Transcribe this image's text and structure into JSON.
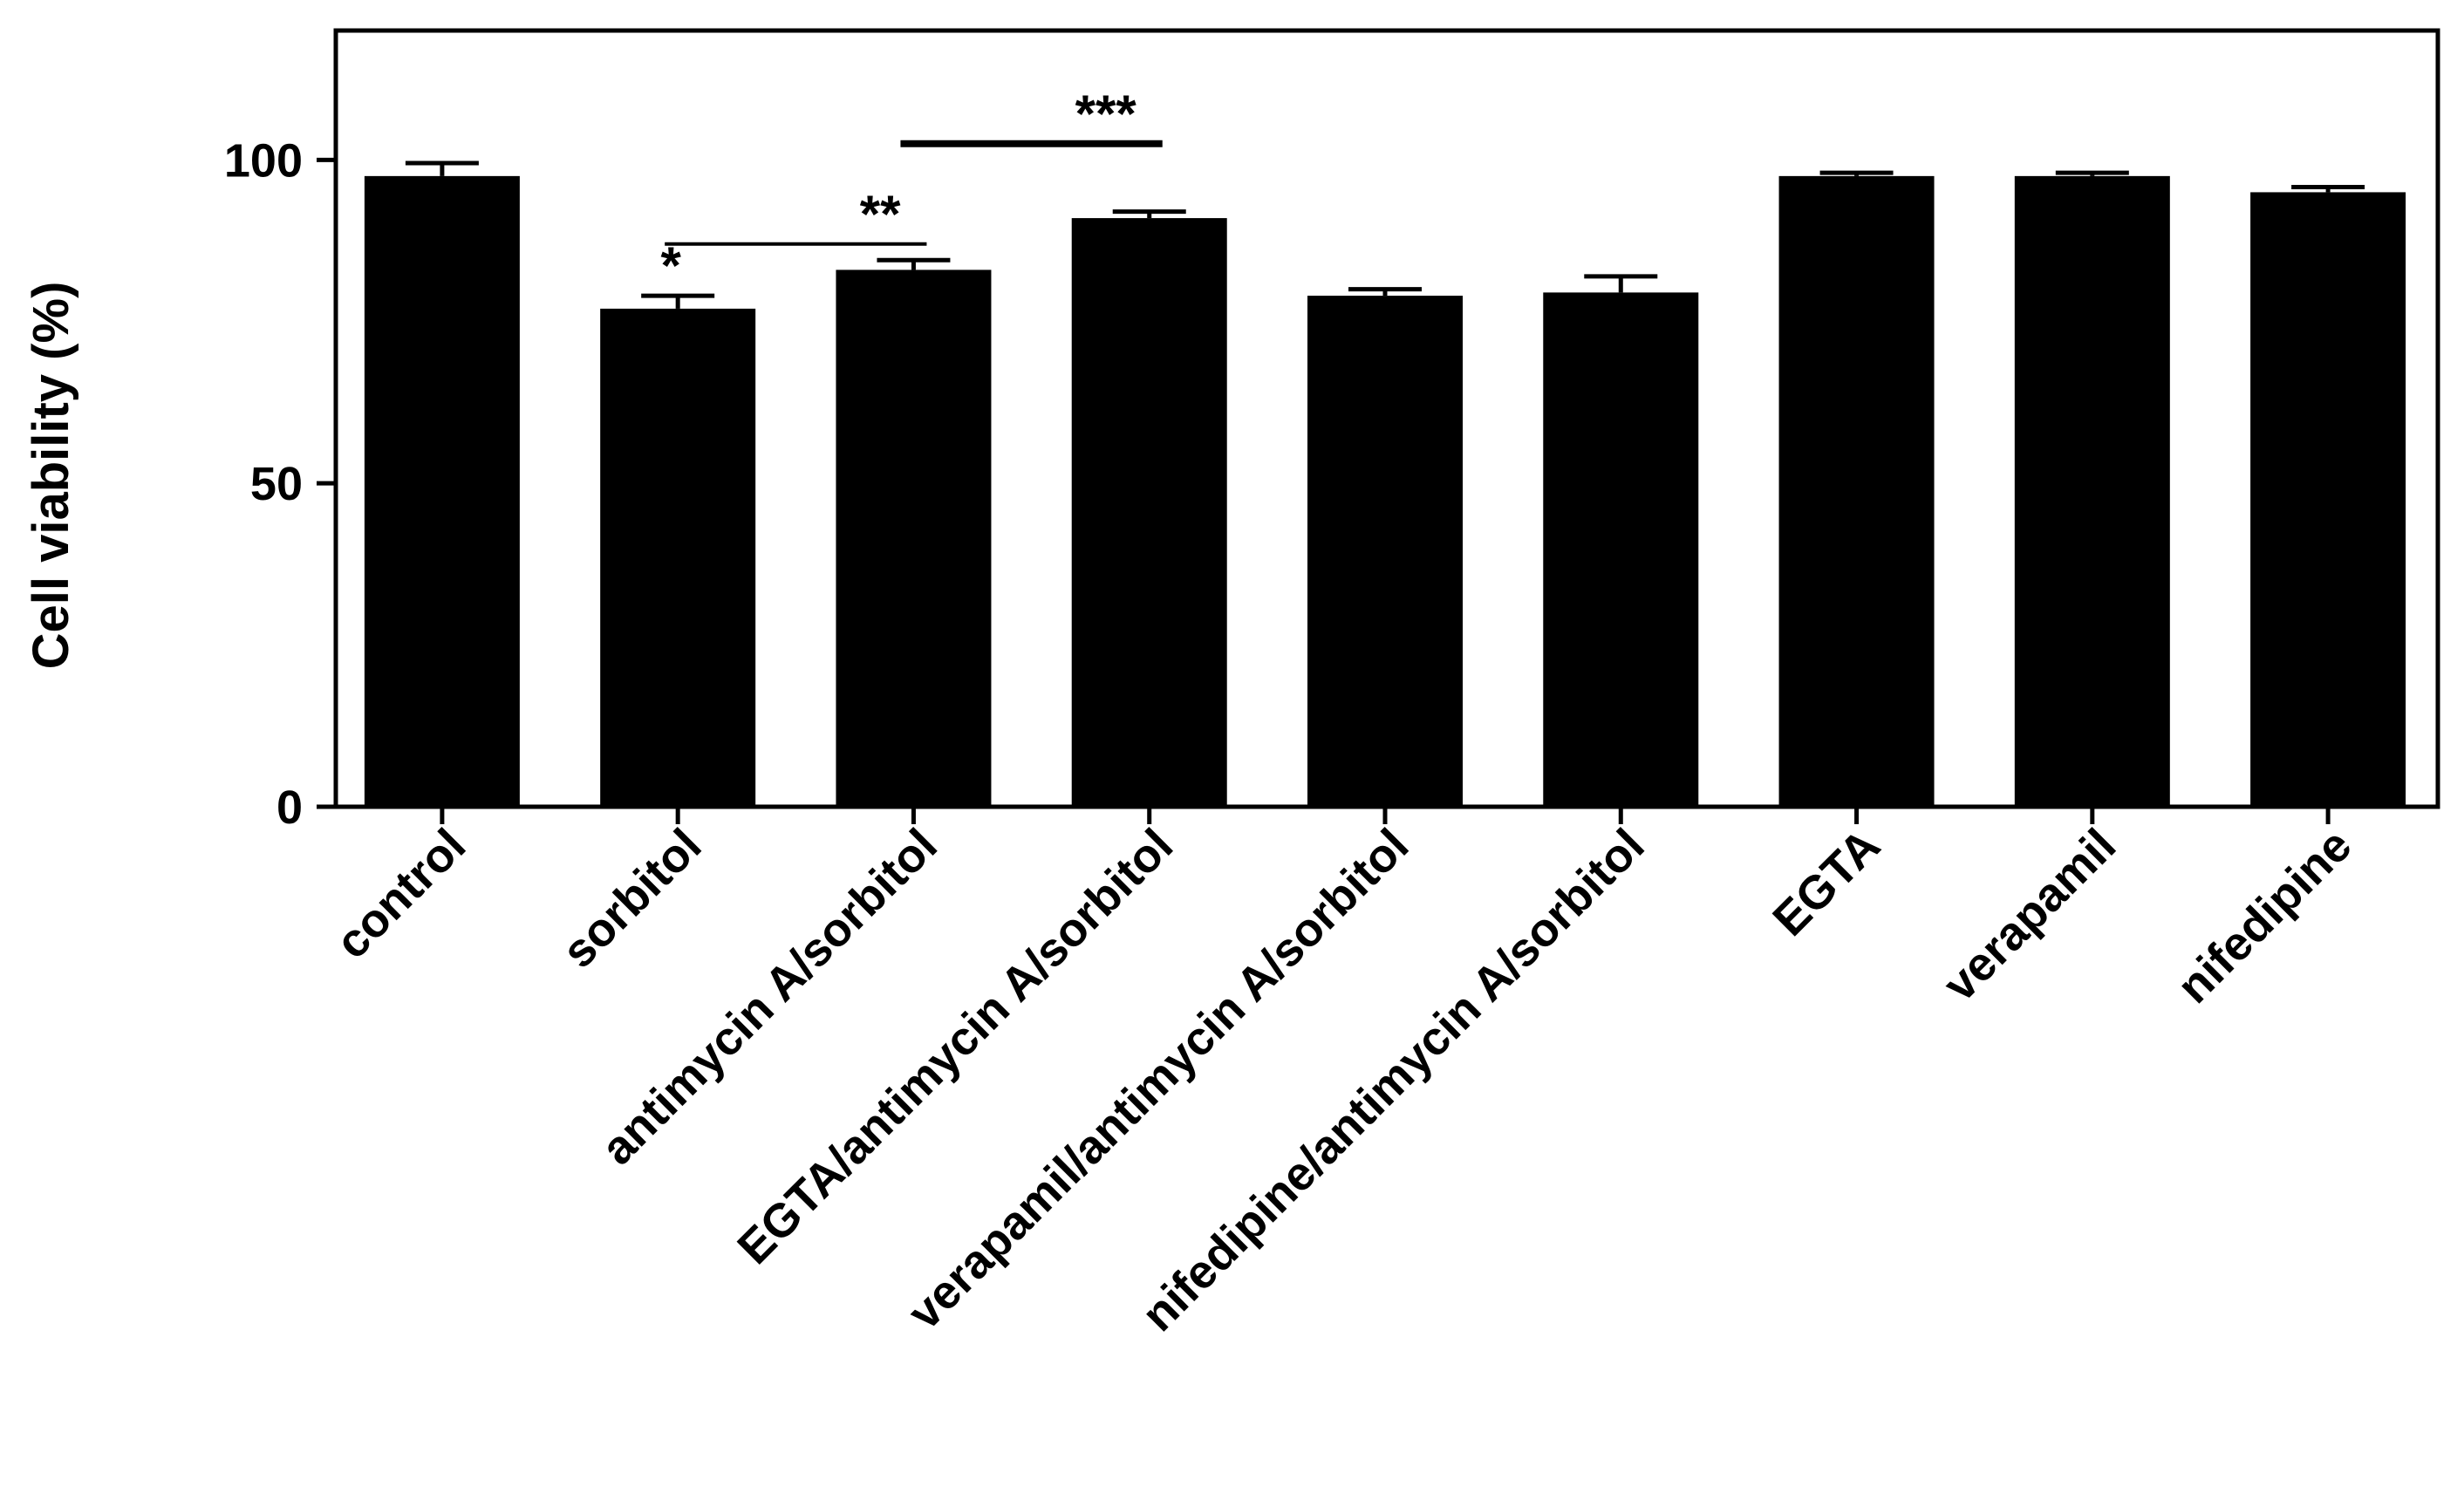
{
  "chart_data": {
    "type": "bar",
    "title": "",
    "xlabel": "",
    "ylabel": "Cell viability (%)",
    "ylim": [
      0,
      120
    ],
    "yticks": [
      0,
      50,
      100
    ],
    "grid": false,
    "legend": "none",
    "bar_color": "#000000",
    "categories": [
      "control",
      "sorbitol",
      "antimycin A/sorbitol",
      "EGTA/antimycin A/sorbitol",
      "verapamil/antimycin A/sorbitol",
      "nifedipine/antimycin A/sorbitol",
      "EGTA",
      "verapamil",
      "nifedipine"
    ],
    "values": [
      97.5,
      77,
      83,
      91,
      79,
      79.5,
      97.5,
      97.5,
      95
    ],
    "errors": [
      2,
      2,
      1.5,
      1,
      1,
      2.5,
      0.5,
      0.5,
      0.8
    ],
    "annotations": [
      {
        "text": "*",
        "category_index": 1
      },
      {
        "text": "**",
        "from": 1,
        "to": 2,
        "y": 87
      },
      {
        "text": "***",
        "from": 2,
        "to": 3,
        "y": 102.5
      }
    ]
  }
}
